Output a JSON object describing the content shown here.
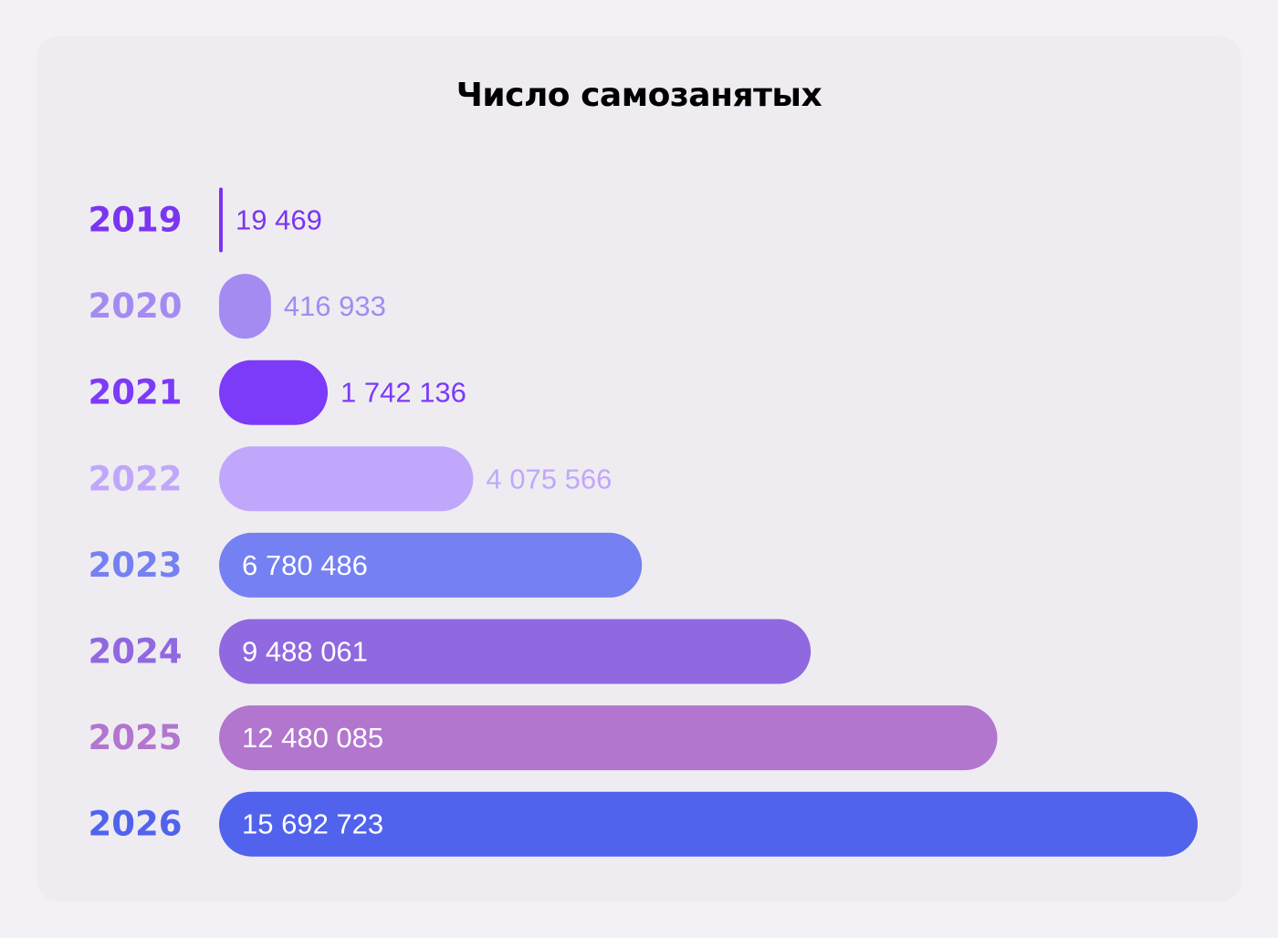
{
  "chart_data": {
    "type": "bar",
    "orientation": "horizontal",
    "title": "Число самозанятых",
    "categories": [
      "2019",
      "2020",
      "2021",
      "2022",
      "2023",
      "2024",
      "2025",
      "2026"
    ],
    "values": [
      19469,
      416933,
      1742136,
      4075566,
      6780486,
      9488061,
      12480085,
      15692723
    ],
    "value_labels": [
      "19 469",
      "416 933",
      "1 742 136",
      "4 075 566",
      "6 780 486",
      "9 488 061",
      "12 480 085",
      "15 692 723"
    ],
    "colors": [
      "#7b35f0",
      "#a48bf2",
      "#7c3af9",
      "#c1a7fb",
      "#7580f2",
      "#9068e0",
      "#b276cf",
      "#5163ec"
    ],
    "grid": false,
    "legend": "none"
  }
}
